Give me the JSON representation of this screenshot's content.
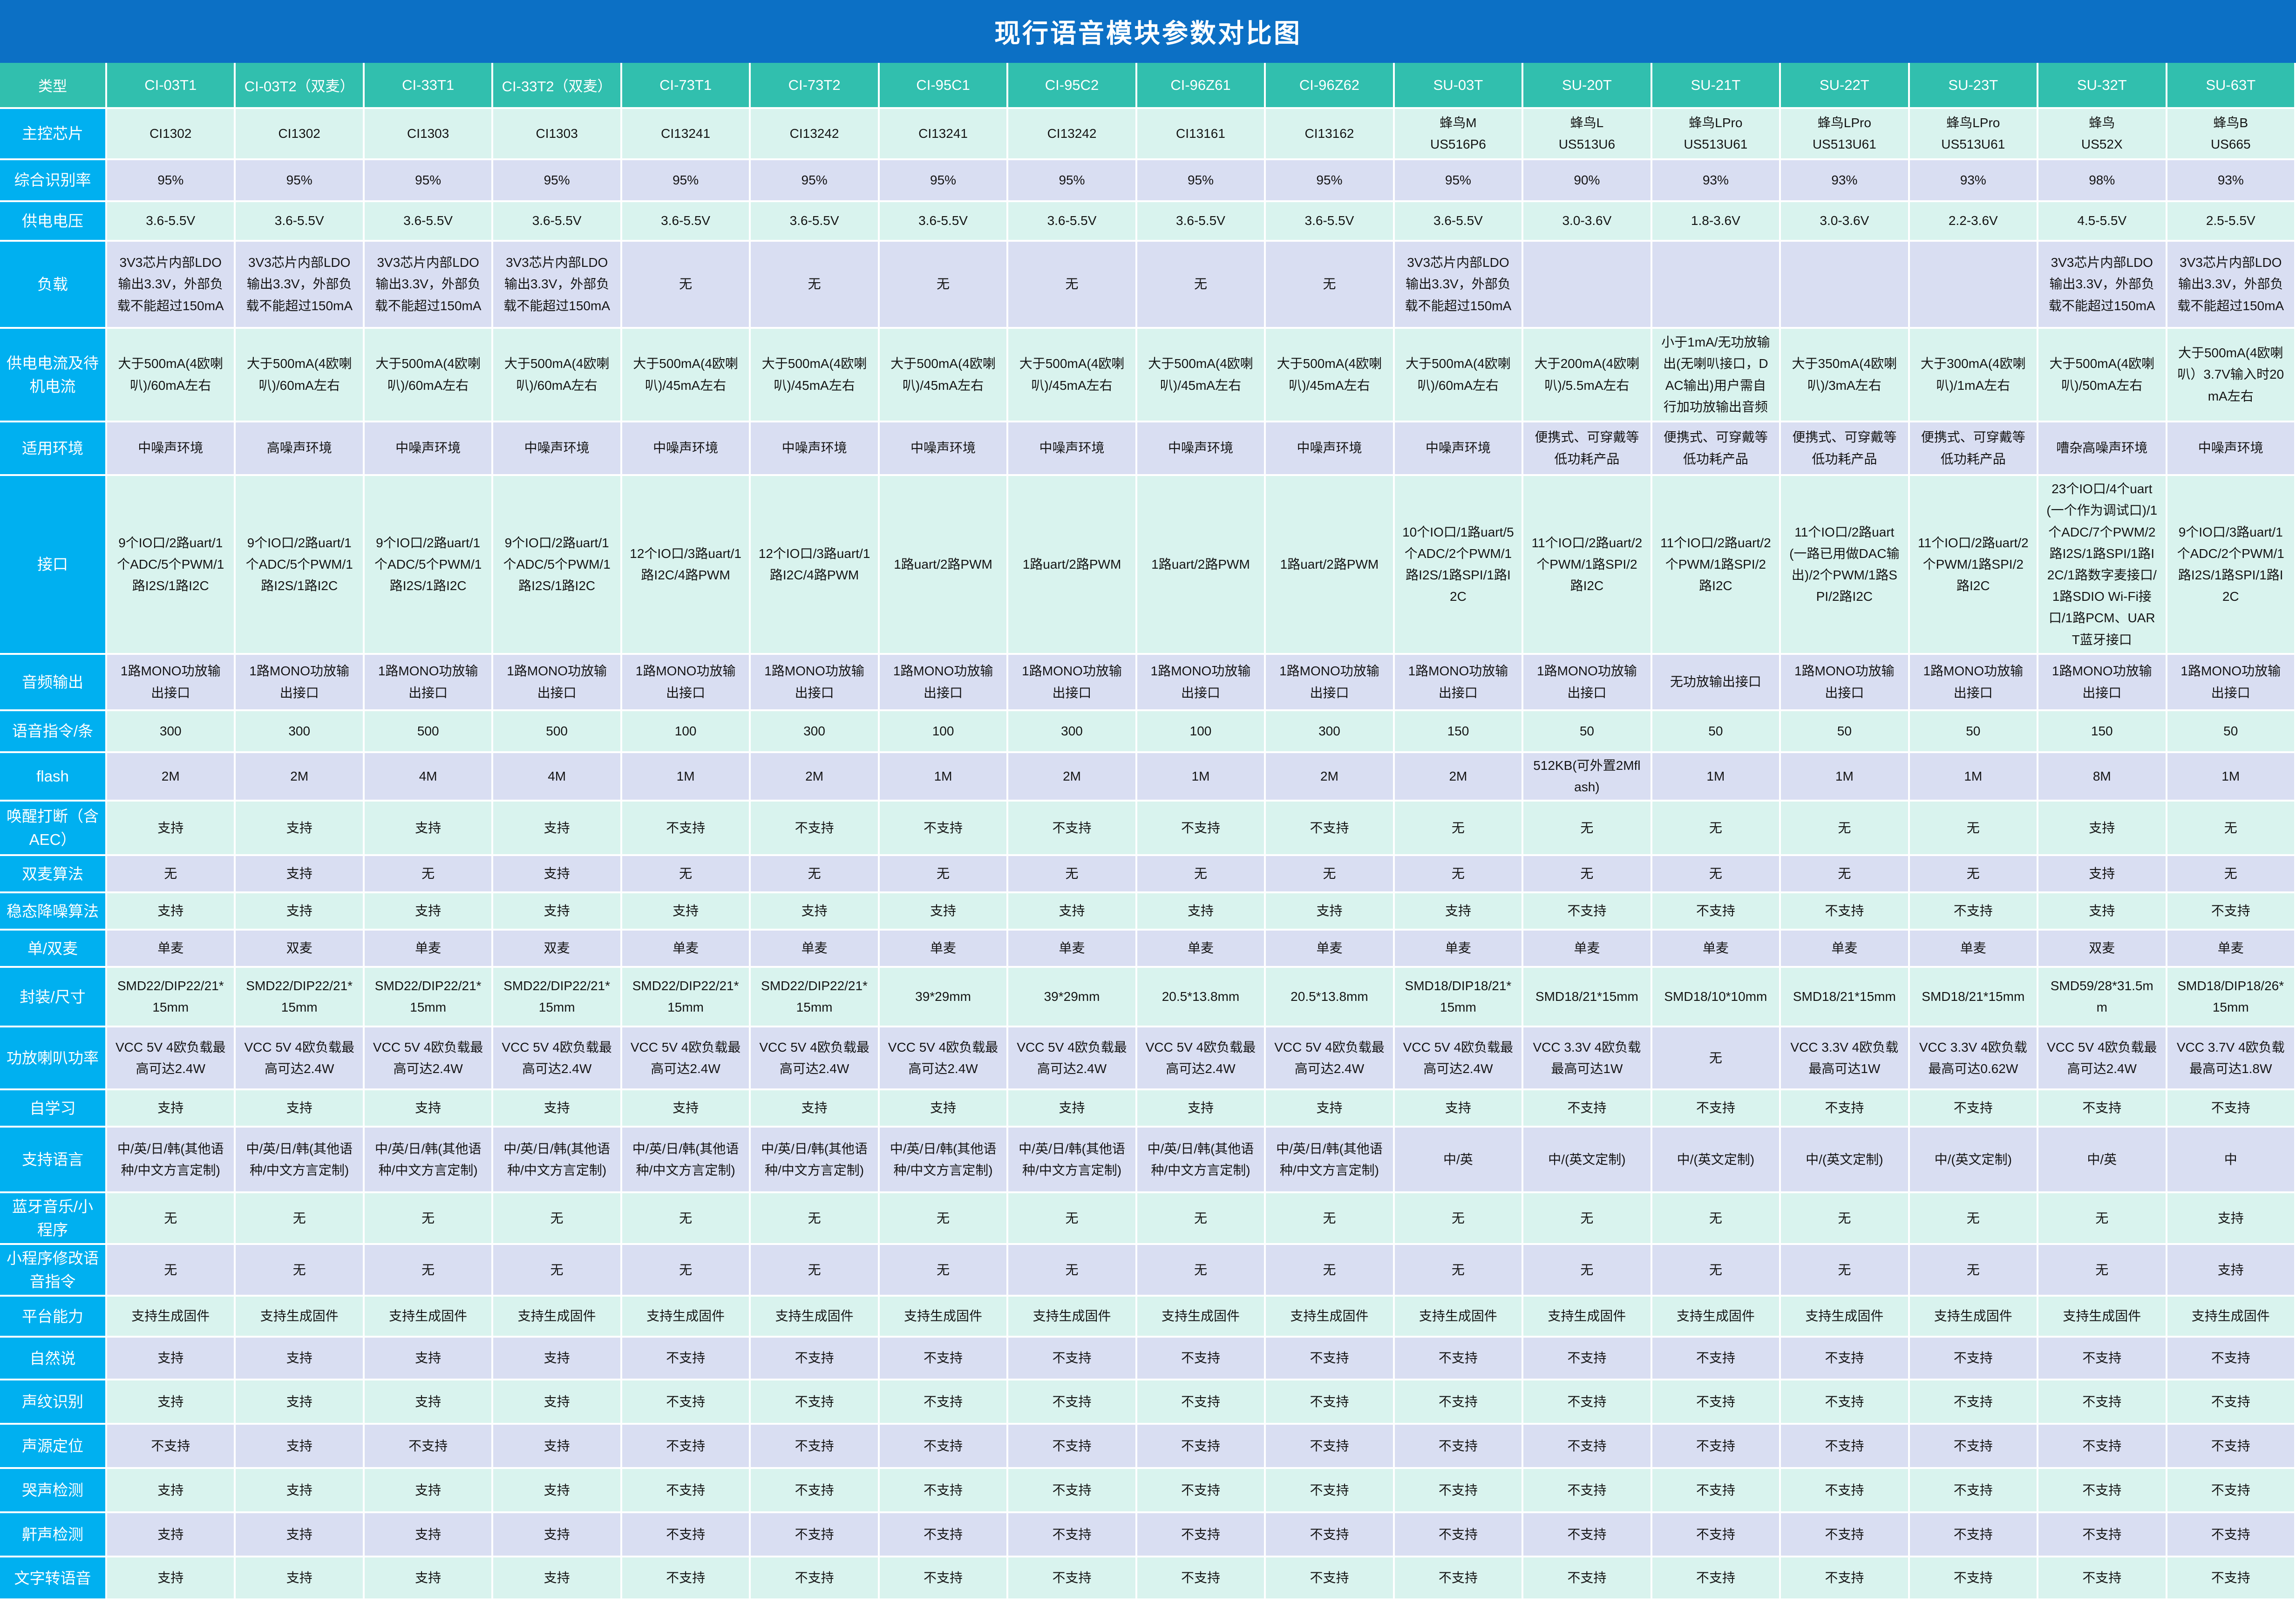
{
  "title": "现行语音模块参数对比图",
  "colors": {
    "title_bar": "#0c70c5",
    "header_bg": "#31bfae",
    "label_col_bg": "#00b0f0",
    "row_mint": "#d9f3ee",
    "row_lavender": "#d9def2",
    "grid": "#ffffff",
    "text": "#141414"
  },
  "table": {
    "corner_label": "类型",
    "columns": [
      "CI-03T1",
      "CI-03T2（双麦）",
      "CI-33T1",
      "CI-33T2（双麦）",
      "CI-73T1",
      "CI-73T2",
      "CI-95C1",
      "CI-95C2",
      "CI-96Z61",
      "CI-96Z62",
      "SU-03T",
      "SU-20T",
      "SU-21T",
      "SU-22T",
      "SU-23T",
      "SU-32T",
      "SU-63T"
    ],
    "rows": [
      {
        "label": "主控芯片",
        "values": [
          "CI1302",
          "CI1302",
          "CI1303",
          "CI1303",
          "CI13241",
          "CI13242",
          "CI13241",
          "CI13242",
          "CI13161",
          "CI13162",
          "蜂鸟M\nUS516P6",
          "蜂鸟L\nUS513U6",
          "蜂鸟LPro\nUS513U61",
          "蜂鸟LPro\nUS513U61",
          "蜂鸟LPro\nUS513U61",
          "蜂鸟\nUS52X",
          "蜂鸟B\nUS665"
        ]
      },
      {
        "label": "综合识别率",
        "values": [
          "95%",
          "95%",
          "95%",
          "95%",
          "95%",
          "95%",
          "95%",
          "95%",
          "95%",
          "95%",
          "95%",
          "90%",
          "93%",
          "93%",
          "93%",
          "98%",
          "93%"
        ]
      },
      {
        "label": "供电电压",
        "values": [
          "3.6-5.5V",
          "3.6-5.5V",
          "3.6-5.5V",
          "3.6-5.5V",
          "3.6-5.5V",
          "3.6-5.5V",
          "3.6-5.5V",
          "3.6-5.5V",
          "3.6-5.5V",
          "3.6-5.5V",
          "3.6-5.5V",
          "3.0-3.6V",
          "1.8-3.6V",
          "3.0-3.6V",
          "2.2-3.6V",
          "4.5-5.5V",
          "2.5-5.5V"
        ]
      },
      {
        "label": "负载",
        "values": [
          "3V3芯片内部LDO输出3.3V，外部负载不能超过150mA",
          "3V3芯片内部LDO输出3.3V，外部负载不能超过150mA",
          "3V3芯片内部LDO输出3.3V，外部负载不能超过150mA",
          "3V3芯片内部LDO输出3.3V，外部负载不能超过150mA",
          "无",
          "无",
          "无",
          "无",
          "无",
          "无",
          "3V3芯片内部LDO输出3.3V，外部负载不能超过150mA",
          "",
          "",
          "",
          "",
          "3V3芯片内部LDO输出3.3V，外部负载不能超过150mA",
          "3V3芯片内部LDO输出3.3V，外部负载不能超过150mA"
        ]
      },
      {
        "label": "供电电流及待机电流",
        "values": [
          "大于500mA(4欧喇叭)/60mA左右",
          "大于500mA(4欧喇叭)/60mA左右",
          "大于500mA(4欧喇叭)/60mA左右",
          "大于500mA(4欧喇叭)/60mA左右",
          "大于500mA(4欧喇叭)/45mA左右",
          "大于500mA(4欧喇叭)/45mA左右",
          "大于500mA(4欧喇叭)/45mA左右",
          "大于500mA(4欧喇叭)/45mA左右",
          "大于500mA(4欧喇叭)/45mA左右",
          "大于500mA(4欧喇叭)/45mA左右",
          "大于500mA(4欧喇叭)/60mA左右",
          "大于200mA(4欧喇叭)/5.5mA左右",
          "小于1mA/无功放输出(无喇叭接口，DAC输出)用户需自行加功放输出音频",
          "大于350mA(4欧喇叭)/3mA左右",
          "大于300mA(4欧喇叭)/1mA左右",
          "大于500mA(4欧喇叭)/50mA左右",
          "大于500mA(4欧喇叭）3.7V输入时20mA左右"
        ]
      },
      {
        "label": "适用环境",
        "values": [
          "中噪声环境",
          "高噪声环境",
          "中噪声环境",
          "中噪声环境",
          "中噪声环境",
          "中噪声环境",
          "中噪声环境",
          "中噪声环境",
          "中噪声环境",
          "中噪声环境",
          "中噪声环境",
          "便携式、可穿戴等低功耗产品",
          "便携式、可穿戴等低功耗产品",
          "便携式、可穿戴等低功耗产品",
          "便携式、可穿戴等低功耗产品",
          "嘈杂高噪声环境",
          "中噪声环境"
        ]
      },
      {
        "label": "接口",
        "values": [
          "9个IO口/2路uart/1个ADC/5个PWM/1路I2S/1路I2C",
          "9个IO口/2路uart/1个ADC/5个PWM/1路I2S/1路I2C",
          "9个IO口/2路uart/1个ADC/5个PWM/1路I2S/1路I2C",
          "9个IO口/2路uart/1个ADC/5个PWM/1路I2S/1路I2C",
          "12个IO口/3路uart/1路I2C/4路PWM",
          "12个IO口/3路uart/1路I2C/4路PWM",
          "1路uart/2路PWM",
          "1路uart/2路PWM",
          "1路uart/2路PWM",
          "1路uart/2路PWM",
          "10个IO口/1路uart/5个ADC/2个PWM/1路I2S/1路SPI/1路I2C",
          "11个IO口/2路uart/2个PWM/1路SPI/2路I2C",
          "11个IO口/2路uart/2个PWM/1路SPI/2路I2C",
          "11个IO口/2路uart(一路已用做DAC输出)/2个PWM/1路SPI/2路I2C",
          "11个IO口/2路uart/2个PWM/1路SPI/2路I2C",
          "23个IO口/4个uart(一个作为调试口)/1个ADC/7个PWM/2路I2S/1路SPI/1路I2C/1路数字麦接口/1路SDIO Wi-Fi接口/1路PCM、UART蓝牙接口",
          "9个IO口/3路uart/1个ADC/2个PWM/1路I2S/1路SPI/1路I2C"
        ]
      },
      {
        "label": "音频输出",
        "values": [
          "1路MONO功放输出接口",
          "1路MONO功放输出接口",
          "1路MONO功放输出接口",
          "1路MONO功放输出接口",
          "1路MONO功放输出接口",
          "1路MONO功放输出接口",
          "1路MONO功放输出接口",
          "1路MONO功放输出接口",
          "1路MONO功放输出接口",
          "1路MONO功放输出接口",
          "1路MONO功放输出接口",
          "1路MONO功放输出接口",
          "无功放输出接口",
          "1路MONO功放输出接口",
          "1路MONO功放输出接口",
          "1路MONO功放输出接口",
          "1路MONO功放输出接口"
        ]
      },
      {
        "label": "语音指令/条",
        "values": [
          "300",
          "300",
          "500",
          "500",
          "100",
          "300",
          "100",
          "300",
          "100",
          "300",
          "150",
          "50",
          "50",
          "50",
          "50",
          "150",
          "50"
        ]
      },
      {
        "label": "flash",
        "values": [
          "2M",
          "2M",
          "4M",
          "4M",
          "1M",
          "2M",
          "1M",
          "2M",
          "1M",
          "2M",
          "2M",
          "512KB(可外置2Mflash)",
          "1M",
          "1M",
          "1M",
          "8M",
          "1M"
        ]
      },
      {
        "label": "唤醒打断（含AEC）",
        "values": [
          "支持",
          "支持",
          "支持",
          "支持",
          "不支持",
          "不支持",
          "不支持",
          "不支持",
          "不支持",
          "不支持",
          "无",
          "无",
          "无",
          "无",
          "无",
          "支持",
          "无"
        ]
      },
      {
        "label": "双麦算法",
        "values": [
          "无",
          "支持",
          "无",
          "支持",
          "无",
          "无",
          "无",
          "无",
          "无",
          "无",
          "无",
          "无",
          "无",
          "无",
          "无",
          "支持",
          "无"
        ]
      },
      {
        "label": "稳态降噪算法",
        "values": [
          "支持",
          "支持",
          "支持",
          "支持",
          "支持",
          "支持",
          "支持",
          "支持",
          "支持",
          "支持",
          "支持",
          "不支持",
          "不支持",
          "不支持",
          "不支持",
          "支持",
          "不支持"
        ]
      },
      {
        "label": "单/双麦",
        "values": [
          "单麦",
          "双麦",
          "单麦",
          "双麦",
          "单麦",
          "单麦",
          "单麦",
          "单麦",
          "单麦",
          "单麦",
          "单麦",
          "单麦",
          "单麦",
          "单麦",
          "单麦",
          "双麦",
          "单麦"
        ]
      },
      {
        "label": "封装/尺寸",
        "values": [
          "SMD22/DIP22/21*15mm",
          "SMD22/DIP22/21*15mm",
          "SMD22/DIP22/21*15mm",
          "SMD22/DIP22/21*15mm",
          "SMD22/DIP22/21*15mm",
          "SMD22/DIP22/21*15mm",
          "39*29mm",
          "39*29mm",
          "20.5*13.8mm",
          "20.5*13.8mm",
          "SMD18/DIP18/21*15mm",
          "SMD18/21*15mm",
          "SMD18/10*10mm",
          "SMD18/21*15mm",
          "SMD18/21*15mm",
          "SMD59/28*31.5mm",
          "SMD18/DIP18/26*15mm"
        ]
      },
      {
        "label": "功放喇叭功率",
        "values": [
          "VCC 5V 4欧负载最高可达2.4W",
          "VCC 5V 4欧负载最高可达2.4W",
          "VCC 5V 4欧负载最高可达2.4W",
          "VCC 5V 4欧负载最高可达2.4W",
          "VCC 5V 4欧负载最高可达2.4W",
          "VCC 5V 4欧负载最高可达2.4W",
          "VCC 5V 4欧负载最高可达2.4W",
          "VCC 5V 4欧负载最高可达2.4W",
          "VCC 5V 4欧负载最高可达2.4W",
          "VCC 5V 4欧负载最高可达2.4W",
          "VCC 5V 4欧负载最高可达2.4W",
          "VCC 3.3V 4欧负载最高可达1W",
          "无",
          "VCC 3.3V 4欧负载最高可达1W",
          "VCC 3.3V 4欧负载最高可达0.62W",
          "VCC 5V 4欧负载最高可达2.4W",
          "VCC 3.7V 4欧负载最高可达1.8W"
        ]
      },
      {
        "label": "自学习",
        "values": [
          "支持",
          "支持",
          "支持",
          "支持",
          "支持",
          "支持",
          "支持",
          "支持",
          "支持",
          "支持",
          "支持",
          "不支持",
          "不支持",
          "不支持",
          "不支持",
          "不支持",
          "不支持"
        ]
      },
      {
        "label": "支持语言",
        "values": [
          "中/英/日/韩(其他语种/中文方言定制)",
          "中/英/日/韩(其他语种/中文方言定制)",
          "中/英/日/韩(其他语种/中文方言定制)",
          "中/英/日/韩(其他语种/中文方言定制)",
          "中/英/日/韩(其他语种/中文方言定制)",
          "中/英/日/韩(其他语种/中文方言定制)",
          "中/英/日/韩(其他语种/中文方言定制)",
          "中/英/日/韩(其他语种/中文方言定制)",
          "中/英/日/韩(其他语种/中文方言定制)",
          "中/英/日/韩(其他语种/中文方言定制)",
          "中/英",
          "中/(英文定制)",
          "中/(英文定制)",
          "中/(英文定制)",
          "中/(英文定制)",
          "中/英",
          "中"
        ]
      },
      {
        "label": "蓝牙音乐/小程序",
        "values": [
          "无",
          "无",
          "无",
          "无",
          "无",
          "无",
          "无",
          "无",
          "无",
          "无",
          "无",
          "无",
          "无",
          "无",
          "无",
          "无",
          "支持"
        ]
      },
      {
        "label": "小程序修改语音指令",
        "values": [
          "无",
          "无",
          "无",
          "无",
          "无",
          "无",
          "无",
          "无",
          "无",
          "无",
          "无",
          "无",
          "无",
          "无",
          "无",
          "无",
          "支持"
        ]
      },
      {
        "label": "平台能力",
        "values": [
          "支持生成固件",
          "支持生成固件",
          "支持生成固件",
          "支持生成固件",
          "支持生成固件",
          "支持生成固件",
          "支持生成固件",
          "支持生成固件",
          "支持生成固件",
          "支持生成固件",
          "支持生成固件",
          "支持生成固件",
          "支持生成固件",
          "支持生成固件",
          "支持生成固件",
          "支持生成固件",
          "支持生成固件"
        ]
      },
      {
        "label": "自然说",
        "values": [
          "支持",
          "支持",
          "支持",
          "支持",
          "不支持",
          "不支持",
          "不支持",
          "不支持",
          "不支持",
          "不支持",
          "不支持",
          "不支持",
          "不支持",
          "不支持",
          "不支持",
          "不支持",
          "不支持"
        ]
      },
      {
        "label": "声纹识别",
        "values": [
          "支持",
          "支持",
          "支持",
          "支持",
          "不支持",
          "不支持",
          "不支持",
          "不支持",
          "不支持",
          "不支持",
          "不支持",
          "不支持",
          "不支持",
          "不支持",
          "不支持",
          "不支持",
          "不支持"
        ]
      },
      {
        "label": "声源定位",
        "values": [
          "不支持",
          "支持",
          "不支持",
          "支持",
          "不支持",
          "不支持",
          "不支持",
          "不支持",
          "不支持",
          "不支持",
          "不支持",
          "不支持",
          "不支持",
          "不支持",
          "不支持",
          "不支持",
          "不支持"
        ]
      },
      {
        "label": "哭声检测",
        "values": [
          "支持",
          "支持",
          "支持",
          "支持",
          "不支持",
          "不支持",
          "不支持",
          "不支持",
          "不支持",
          "不支持",
          "不支持",
          "不支持",
          "不支持",
          "不支持",
          "不支持",
          "不支持",
          "不支持"
        ]
      },
      {
        "label": "鼾声检测",
        "values": [
          "支持",
          "支持",
          "支持",
          "支持",
          "不支持",
          "不支持",
          "不支持",
          "不支持",
          "不支持",
          "不支持",
          "不支持",
          "不支持",
          "不支持",
          "不支持",
          "不支持",
          "不支持",
          "不支持"
        ]
      },
      {
        "label": "文字转语音",
        "values": [
          "支持",
          "支持",
          "支持",
          "支持",
          "不支持",
          "不支持",
          "不支持",
          "不支持",
          "不支持",
          "不支持",
          "不支持",
          "不支持",
          "不支持",
          "不支持",
          "不支持",
          "不支持",
          "不支持"
        ]
      }
    ]
  }
}
